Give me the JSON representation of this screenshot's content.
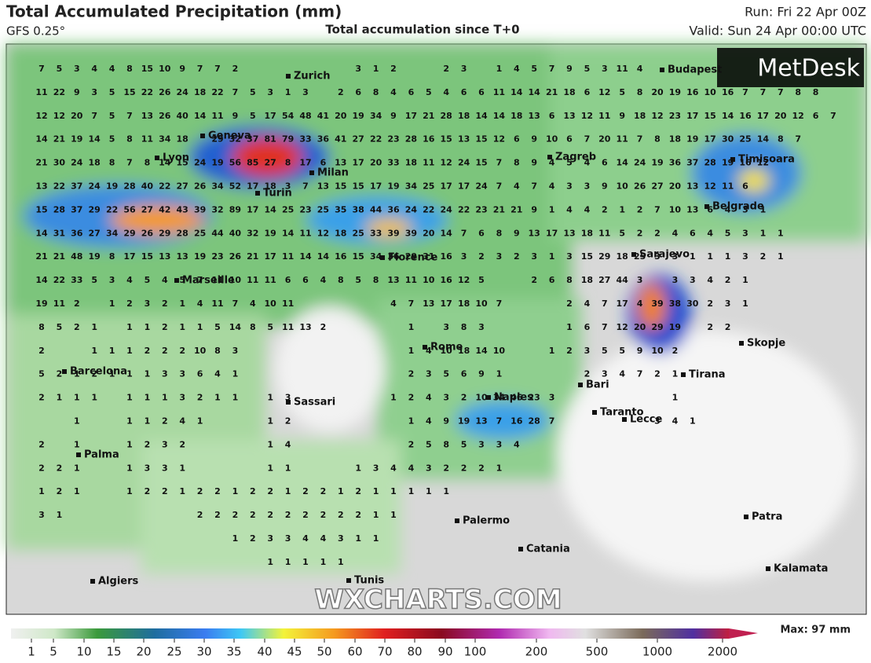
{
  "header": {
    "title": "Total Accumulated Precipitation (mm)",
    "model": "GFS 0.25°",
    "subtitle": "Total accumulation since T+0",
    "run": "Run: Fri 22 Apr 00Z",
    "valid": "Valid: Sun 24 Apr 00:00 UTC"
  },
  "logo": "MetDesk",
  "watermark": "WXCHARTS.COM",
  "cities": [
    "Zurich",
    "Budapest",
    "Geneva",
    "Lyon",
    "Milan",
    "Zagreb",
    "Timisoara",
    "Turin",
    "Belgrade",
    "Florence",
    "Sarajevo",
    "Marseille",
    "Rome",
    "Skopje",
    "Tirana",
    "Barcelona",
    "Bari",
    "Naples",
    "Sassari",
    "Taranto",
    "Lecce",
    "Palma",
    "Palermo",
    "Patra",
    "Catania",
    "Kalamata",
    "Tunis",
    "Algiers"
  ],
  "grid": {
    "rows": [
      [
        7,
        5,
        3,
        4,
        4,
        8,
        15,
        10,
        9,
        7,
        7,
        2,
        null,
        null,
        null,
        null,
        null,
        null,
        3,
        1,
        2,
        null,
        null,
        2,
        3,
        null,
        1,
        4,
        5,
        7,
        9,
        5,
        3,
        11,
        4
      ],
      [
        11,
        22,
        9,
        3,
        5,
        15,
        22,
        26,
        24,
        18,
        22,
        7,
        5,
        3,
        1,
        3,
        null,
        2,
        6,
        8,
        4,
        6,
        5,
        4,
        6,
        6,
        11,
        14,
        14,
        21,
        18,
        6,
        12,
        5,
        8,
        20,
        19,
        16,
        10,
        16,
        7,
        7,
        7,
        8,
        8
      ],
      [
        12,
        12,
        20,
        7,
        5,
        7,
        13,
        26,
        40,
        14,
        11,
        9,
        5,
        17,
        54,
        48,
        41,
        20,
        19,
        34,
        9,
        17,
        21,
        28,
        18,
        14,
        14,
        18,
        13,
        6,
        13,
        12,
        11,
        9,
        18,
        12,
        23,
        17,
        15,
        14,
        16,
        17,
        20,
        12,
        6,
        7
      ],
      [
        14,
        21,
        19,
        14,
        5,
        8,
        11,
        34,
        18,
        null,
        29,
        32,
        37,
        81,
        79,
        33,
        36,
        41,
        27,
        22,
        23,
        28,
        16,
        15,
        13,
        15,
        12,
        6,
        9,
        10,
        6,
        7,
        20,
        11,
        7,
        8,
        18,
        19,
        17,
        30,
        25,
        14,
        8,
        7
      ],
      [
        21,
        30,
        24,
        18,
        8,
        7,
        8,
        14,
        15,
        24,
        19,
        56,
        85,
        27,
        8,
        17,
        6,
        13,
        17,
        20,
        33,
        18,
        11,
        12,
        24,
        15,
        7,
        8,
        9,
        4,
        5,
        4,
        6,
        14,
        24,
        19,
        36,
        37,
        28,
        19,
        16,
        12
      ],
      [
        13,
        22,
        37,
        24,
        19,
        28,
        40,
        22,
        27,
        26,
        34,
        52,
        17,
        18,
        3,
        7,
        13,
        15,
        15,
        17,
        19,
        34,
        25,
        17,
        17,
        24,
        7,
        4,
        7,
        4,
        3,
        3,
        9,
        10,
        26,
        27,
        20,
        13,
        12,
        11,
        6
      ],
      [
        15,
        28,
        37,
        29,
        22,
        56,
        27,
        42,
        43,
        39,
        32,
        89,
        17,
        14,
        25,
        23,
        25,
        35,
        38,
        44,
        36,
        24,
        22,
        24,
        22,
        23,
        21,
        21,
        9,
        1,
        4,
        4,
        2,
        1,
        2,
        7,
        10,
        13,
        6,
        4,
        3,
        1
      ],
      [
        14,
        31,
        36,
        27,
        34,
        29,
        26,
        29,
        28,
        25,
        44,
        40,
        32,
        19,
        14,
        11,
        12,
        18,
        25,
        33,
        39,
        39,
        20,
        14,
        7,
        6,
        8,
        9,
        13,
        17,
        13,
        18,
        11,
        5,
        2,
        2,
        4,
        6,
        4,
        5,
        3,
        1,
        1
      ],
      [
        21,
        21,
        48,
        19,
        8,
        17,
        15,
        13,
        13,
        19,
        23,
        26,
        21,
        17,
        11,
        14,
        14,
        16,
        15,
        34,
        36,
        29,
        31,
        16,
        3,
        2,
        3,
        2,
        3,
        1,
        3,
        15,
        29,
        18,
        25,
        3,
        3,
        1,
        1,
        1,
        3,
        2,
        1
      ],
      [
        14,
        22,
        33,
        5,
        3,
        4,
        5,
        4,
        5,
        7,
        11,
        10,
        11,
        11,
        6,
        6,
        4,
        8,
        5,
        8,
        13,
        11,
        10,
        16,
        12,
        5,
        null,
        null,
        2,
        6,
        8,
        18,
        27,
        44,
        3,
        null,
        3,
        3,
        4,
        2,
        1
      ],
      [
        19,
        11,
        2,
        null,
        1,
        2,
        3,
        2,
        1,
        4,
        11,
        7,
        4,
        10,
        11,
        null,
        null,
        null,
        null,
        null,
        4,
        7,
        13,
        17,
        18,
        10,
        7,
        null,
        null,
        null,
        2,
        4,
        7,
        17,
        4,
        39,
        38,
        30,
        2,
        3,
        1
      ],
      [
        8,
        5,
        2,
        1,
        null,
        1,
        1,
        2,
        1,
        1,
        5,
        14,
        8,
        5,
        11,
        13,
        2,
        null,
        null,
        null,
        null,
        1,
        null,
        3,
        8,
        3,
        null,
        null,
        null,
        null,
        1,
        6,
        7,
        12,
        20,
        29,
        19,
        null,
        2,
        2
      ],
      [
        2,
        null,
        null,
        1,
        1,
        1,
        2,
        2,
        2,
        10,
        8,
        3,
        null,
        null,
        null,
        null,
        null,
        null,
        null,
        null,
        null,
        1,
        4,
        10,
        18,
        14,
        10,
        null,
        null,
        1,
        2,
        3,
        5,
        5,
        9,
        10,
        2
      ],
      [
        5,
        2,
        1,
        2,
        1,
        1,
        1,
        3,
        3,
        6,
        4,
        1,
        null,
        null,
        null,
        null,
        null,
        null,
        null,
        null,
        null,
        2,
        3,
        5,
        6,
        9,
        1,
        null,
        null,
        null,
        null,
        2,
        3,
        4,
        7,
        2,
        1
      ],
      [
        2,
        1,
        1,
        1,
        null,
        1,
        1,
        1,
        3,
        2,
        1,
        1,
        null,
        1,
        3,
        null,
        null,
        null,
        null,
        null,
        1,
        2,
        4,
        3,
        2,
        10,
        34,
        46,
        23,
        3,
        null,
        null,
        null,
        null,
        null,
        null,
        1
      ],
      [
        null,
        null,
        1,
        null,
        null,
        1,
        1,
        2,
        4,
        1,
        null,
        null,
        null,
        1,
        2,
        null,
        null,
        null,
        null,
        null,
        null,
        1,
        4,
        9,
        19,
        13,
        7,
        16,
        28,
        7,
        null,
        null,
        null,
        null,
        null,
        3,
        4,
        1
      ],
      [
        2,
        null,
        1,
        null,
        null,
        1,
        2,
        3,
        2,
        null,
        null,
        null,
        null,
        1,
        4,
        null,
        null,
        null,
        null,
        null,
        null,
        2,
        5,
        8,
        5,
        3,
        3,
        4
      ],
      [
        2,
        2,
        1,
        null,
        null,
        1,
        3,
        3,
        1,
        null,
        null,
        null,
        null,
        1,
        1,
        null,
        null,
        null,
        1,
        3,
        4,
        4,
        3,
        2,
        2,
        2,
        1
      ],
      [
        1,
        2,
        1,
        null,
        null,
        1,
        2,
        2,
        1,
        2,
        2,
        1,
        2,
        2,
        1,
        2,
        2,
        1,
        2,
        1,
        1,
        1,
        1,
        1
      ],
      [
        3,
        1,
        null,
        null,
        null,
        null,
        null,
        null,
        null,
        2,
        2,
        2,
        2,
        2,
        2,
        2,
        2,
        2,
        2,
        1,
        1
      ],
      [
        null,
        null,
        null,
        null,
        null,
        null,
        null,
        null,
        null,
        null,
        null,
        1,
        2,
        3,
        3,
        4,
        4,
        3,
        1,
        1
      ],
      [
        null,
        null,
        null,
        null,
        null,
        null,
        null,
        null,
        null,
        null,
        null,
        null,
        null,
        1,
        1,
        1,
        1,
        1
      ]
    ]
  },
  "colorbar": {
    "ticks": [
      1,
      5,
      10,
      15,
      20,
      25,
      30,
      35,
      40,
      45,
      50,
      60,
      70,
      80,
      90,
      100,
      200,
      500,
      1000,
      2000
    ],
    "max_label": "Max: 97 mm"
  }
}
